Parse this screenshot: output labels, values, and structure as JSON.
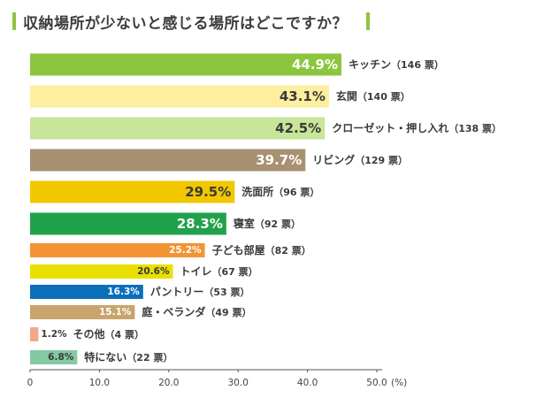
{
  "title": "収納場所が少ないと感じる場所はどこですか？",
  "colors": {
    "title_accent": "#8cc63f",
    "axis": "#555555"
  },
  "chart_data": {
    "type": "bar",
    "orientation": "horizontal",
    "title": "収納場所が少ないと感じる場所はどこですか？",
    "unit": "(%)",
    "xlim": [
      0,
      50
    ],
    "ticks": [
      "0",
      "10.0",
      "20.0",
      "30.0",
      "40.0",
      "50.0"
    ],
    "grid": false,
    "bars": [
      {
        "category": "キッチン",
        "count_label": "（146 票）",
        "value": 44.9,
        "value_label": "44.9%",
        "color": "#8cc63f",
        "label_color": "#ffffff",
        "size": "large"
      },
      {
        "category": "玄関",
        "count_label": "（140 票）",
        "value": 43.1,
        "value_label": "43.1%",
        "color": "#fdeea0",
        "label_color": "#3a3a3a",
        "size": "large"
      },
      {
        "category": "クローゼット・押し入れ",
        "count_label": "（138 票）",
        "value": 42.5,
        "value_label": "42.5%",
        "color": "#c8e59a",
        "label_color": "#3a3a3a",
        "size": "large"
      },
      {
        "category": "リビング",
        "count_label": "（129 票）",
        "value": 39.7,
        "value_label": "39.7%",
        "color": "#a89072",
        "label_color": "#ffffff",
        "size": "large"
      },
      {
        "category": "洗面所",
        "count_label": "（96 票）",
        "value": 29.5,
        "value_label": "29.5%",
        "color": "#f1c700",
        "label_color": "#3a3a3a",
        "size": "large"
      },
      {
        "category": "寝室",
        "count_label": "（92 票）",
        "value": 28.3,
        "value_label": "28.3%",
        "color": "#22a14b",
        "label_color": "#ffffff",
        "size": "large"
      },
      {
        "category": "子ども部屋",
        "count_label": "（82 票）",
        "value": 25.2,
        "value_label": "25.2%",
        "color": "#f29434",
        "label_color": "#ffffff",
        "size": "small"
      },
      {
        "category": "トイレ",
        "count_label": "（67 票）",
        "value": 20.6,
        "value_label": "20.6%",
        "color": "#e7e000",
        "label_color": "#3a3a3a",
        "size": "small"
      },
      {
        "category": "パントリー",
        "count_label": "（53 票）",
        "value": 16.3,
        "value_label": "16.3%",
        "color": "#0a6fbb",
        "label_color": "#ffffff",
        "size": "small"
      },
      {
        "category": "庭・ベランダ",
        "count_label": "（49 票）",
        "value": 15.1,
        "value_label": "15.1%",
        "color": "#c9a46c",
        "label_color": "#ffffff",
        "size": "small"
      },
      {
        "category": "その他",
        "count_label": "（4 票）",
        "value": 1.2,
        "value_label": "1.2%",
        "color": "#f5a78a",
        "label_color": "#3a3a3a",
        "size": "small"
      },
      {
        "category": "特にない",
        "count_label": "（22 票）",
        "value": 6.8,
        "value_label": "6.8%",
        "color": "#84c9a2",
        "label_color": "#3a3a3a",
        "size": "small"
      }
    ]
  }
}
